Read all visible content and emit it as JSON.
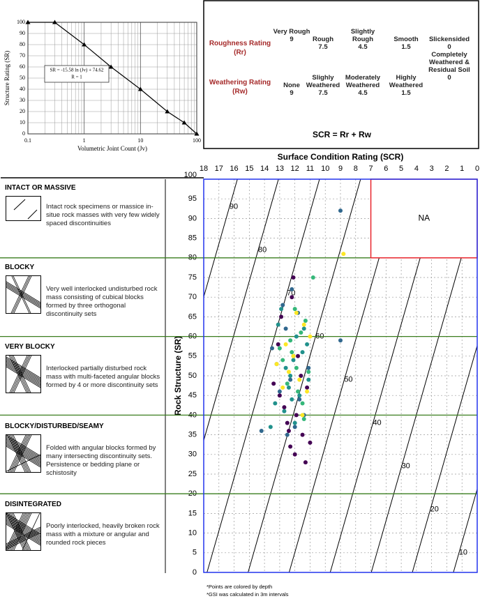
{
  "chart_data": [
    {
      "type": "line",
      "x_label": "Volumetric Joint Count (Jv)",
      "y_label": "Structure Rating (SR)",
      "x": [
        0.1,
        0.3,
        1,
        3,
        10,
        30,
        60,
        100
      ],
      "values": [
        100,
        100,
        80,
        60,
        40,
        20,
        10,
        0
      ],
      "color": "#000000",
      "log_x": true,
      "xlim": [
        0.1,
        100
      ],
      "ylim": [
        0,
        100
      ],
      "xticks": [
        0.1,
        1,
        10,
        100
      ],
      "yticks": [
        0,
        10,
        20,
        30,
        40,
        50,
        60,
        70,
        80,
        90,
        100
      ],
      "grid": true,
      "annotation": [
        "SR = -15.58 ln (Jv) + 74.62",
        "R = 1"
      ]
    },
    {
      "type": "scatter",
      "x_label": "Surface Condition Rating (SCR)",
      "y_label": "Rock Structure (SR)",
      "xlim": [
        18,
        0
      ],
      "ylim": [
        0,
        100
      ],
      "xticks": [
        18,
        17,
        16,
        15,
        14,
        13,
        12,
        11,
        10,
        9,
        8,
        7,
        6,
        5,
        4,
        3,
        2,
        1,
        0
      ],
      "yticks": [
        0,
        5,
        10,
        15,
        20,
        25,
        30,
        35,
        40,
        45,
        50,
        55,
        60,
        65,
        70,
        75,
        80,
        85,
        90,
        95,
        100
      ],
      "grid": true,
      "contours": {
        "values": [
          10,
          20,
          30,
          40,
          50,
          60,
          70,
          80,
          90
        ],
        "color": "#000000"
      },
      "na_region": {
        "label": "NA",
        "xlim": [
          7,
          0
        ],
        "ylim": [
          80,
          100
        ],
        "color": "#e8232a"
      },
      "category_bounds": [
        20,
        40,
        60,
        80
      ],
      "bound_color": "#3a7d1e",
      "series": [
        {
          "color": "#440154",
          "x": [
            12,
            11.5,
            12.5,
            13,
            11,
            12.2,
            11.8,
            12.7,
            11.3,
            13.4,
            12.1,
            11.6,
            12.9,
            12.4,
            11.9,
            13.1,
            12.3,
            11.2
          ],
          "values": [
            30,
            35,
            38,
            45,
            33,
            70,
            55,
            42,
            28,
            48,
            75,
            50,
            65,
            36,
            40,
            58,
            32,
            47
          ]
        },
        {
          "color": "#31688e",
          "x": [
            12.6,
            11.7,
            13.2,
            12.0,
            11.4,
            12.8,
            13.5,
            9,
            12.3,
            11.1,
            13.0,
            12.5,
            11.8,
            14.2,
            12.2,
            9
          ],
          "values": [
            62,
            44,
            53,
            37,
            40,
            68,
            57,
            59,
            49,
            52,
            46,
            35,
            66,
            36,
            72,
            92
          ]
        },
        {
          "color": "#21918c",
          "x": [
            12.1,
            11.9,
            12.4,
            11.5,
            13.1,
            12.7,
            11.2,
            12.3,
            11.7,
            12.9,
            12.0,
            11.4,
            13.3,
            12.6,
            11.1,
            12.2,
            13.6
          ],
          "values": [
            54,
            60,
            47,
            56,
            63,
            41,
            58,
            50,
            45,
            67,
            38,
            62,
            43,
            52,
            49,
            44,
            37
          ]
        },
        {
          "color": "#35b779",
          "x": [
            11.6,
            12.2,
            11.9,
            12.5,
            11.3,
            12.8,
            11.8,
            12.3,
            11.5,
            12.0,
            13.0,
            11.1,
            10.8,
            11.4
          ],
          "values": [
            61,
            56,
            52,
            48,
            64,
            54,
            46,
            59,
            43,
            67,
            57,
            51,
            75,
            39
          ]
        },
        {
          "color": "#fde725",
          "x": [
            11.4,
            12.1,
            11.7,
            12.6,
            11.2,
            12.4,
            11.9,
            13.2,
            11.5,
            12.8,
            8.8,
            11.0
          ],
          "values": [
            63,
            55,
            49,
            58,
            46,
            51,
            66,
            53,
            40,
            47,
            81,
            60
          ]
        }
      ],
      "footnotes": [
        "*Points are colored by depth",
        "*GSI was calculated in 3m intervals"
      ]
    }
  ],
  "ratings_table": {
    "label_color": "#a52a2a",
    "rows": [
      {
        "label": "Roughness Rating",
        "symbol": "(Rr)",
        "columns": [
          {
            "text": "Very Rough",
            "rating": 9
          },
          {
            "text": "Rough",
            "rating": 7.5
          },
          {
            "text": "Slightly Rough",
            "rating": 4.5
          },
          {
            "text": "Smooth",
            "rating": 1.5
          },
          {
            "text": "Slickensided",
            "rating": 0
          }
        ]
      },
      {
        "label": "Weathering Rating",
        "symbol": "(Rw)",
        "columns": [
          {
            "text": "None",
            "rating": 9
          },
          {
            "text": "Slighly Weathered",
            "rating": 7.5
          },
          {
            "text": "Moderately Weathered",
            "rating": 4.5
          },
          {
            "text": "Highly Weathered",
            "rating": 1.5
          },
          {
            "text": "Completely Weathered & Residual Soil",
            "rating": 0
          }
        ]
      }
    ],
    "formula": "SCR = Rr + Rw"
  },
  "rock_types": [
    {
      "title": "INTACT OR MASSIVE",
      "description": "Intact rock specimens or massice in-situe rock masses with very few widely spaced discontinuities"
    },
    {
      "title": "BLOCKY",
      "description": "Very well interlocked undisturbed rock mass consisting of cubical blocks formed by three orthogonal discontinuity sets"
    },
    {
      "title": "VERY BLOCKY",
      "description": "Interlocked partially disturbed rock mass with multi-faceted angular blocks formed by 4 or more discontinuity sets"
    },
    {
      "title": "BLOCKY/DISTURBED/SEAMY",
      "description": "Folded with angular blocks formed by many intersecting discontinuity sets. Persistence or bedding plane or schistosity"
    },
    {
      "title": "DISINTEGRATED",
      "description": "Poorly interlocked, heavily broken rock mass with a mixture or angular and rounded rock pieces"
    }
  ]
}
